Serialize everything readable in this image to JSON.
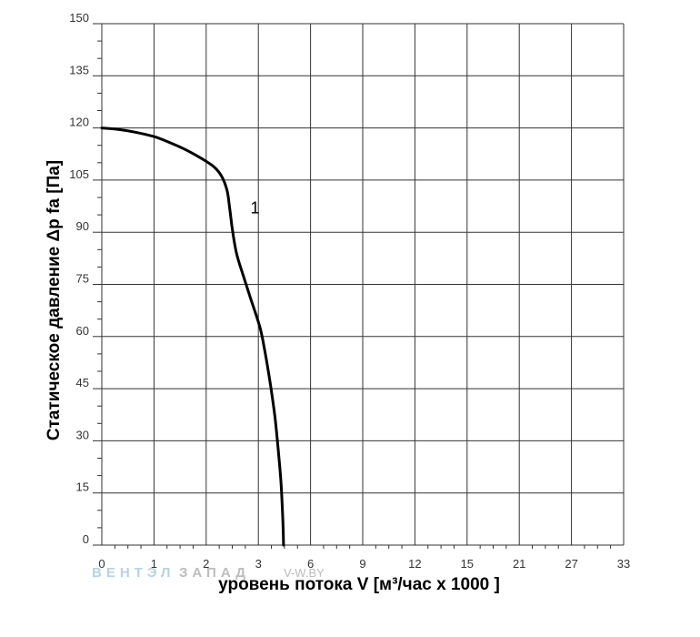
{
  "chart_data": {
    "type": "line",
    "xlabel": "уровень потока  V [м³/час x 1000 ]",
    "ylabel": "Статическое давление  Δp fa [Па]",
    "x_ticks": [
      "0",
      "1",
      "2",
      "3",
      "6",
      "9",
      "12",
      "15",
      "21",
      "27",
      "33"
    ],
    "y_ticks": [
      0,
      15,
      30,
      45,
      60,
      75,
      90,
      105,
      120,
      135,
      150
    ],
    "ylim": [
      0,
      150
    ],
    "grid": true,
    "series": [
      {
        "name": "1",
        "points": [
          [
            0,
            120
          ],
          [
            0.3,
            119.6
          ],
          [
            0.6,
            118.9
          ],
          [
            1.0,
            117.5
          ],
          [
            1.3,
            115.8
          ],
          [
            1.6,
            113.8
          ],
          [
            1.9,
            111.3
          ],
          [
            2.15,
            108.8
          ],
          [
            2.3,
            106
          ],
          [
            2.4,
            102
          ],
          [
            2.45,
            97
          ],
          [
            2.5,
            91
          ],
          [
            2.58,
            84
          ],
          [
            2.7,
            78
          ],
          [
            2.85,
            71
          ],
          [
            3.1,
            62.5
          ],
          [
            3.4,
            55
          ],
          [
            3.7,
            46
          ],
          [
            3.95,
            37
          ],
          [
            4.15,
            27
          ],
          [
            4.3,
            18
          ],
          [
            4.4,
            8
          ],
          [
            4.45,
            0
          ]
        ]
      }
    ],
    "colors": {
      "curve": "#000000",
      "grid": "#333333"
    }
  },
  "watermark": {
    "part1": "ВЕНТЭЛ",
    "part2": "ЗАПАД",
    "site": "V-W.BY"
  }
}
